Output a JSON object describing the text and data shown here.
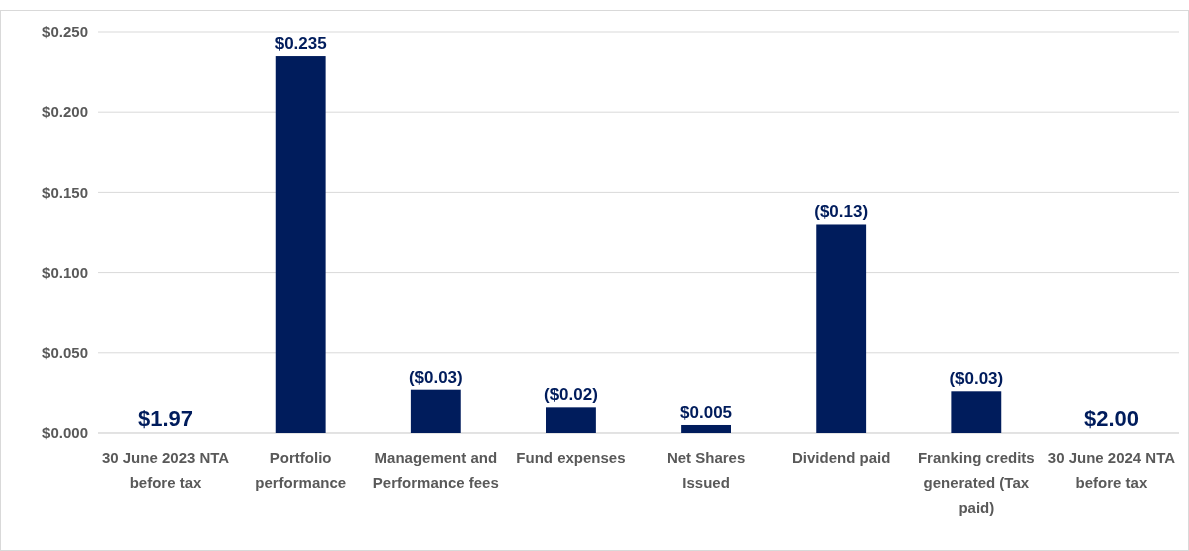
{
  "chart_data": {
    "type": "bar",
    "categories": [
      "30 June 2023 NTA before tax",
      "Portfolio performance",
      "Management and Performance fees",
      "Fund expenses",
      "Net Shares Issued",
      "Dividend paid",
      "Franking credits generated (Tax paid)",
      "30 June 2024 NTA before tax"
    ],
    "values": [
      null,
      0.235,
      0.027,
      0.016,
      0.005,
      0.13,
      0.026,
      null
    ],
    "value_labels": [
      "$1.97",
      "$0.235",
      "($0.03)",
      "($0.02)",
      "$0.005",
      "($0.13)",
      "($0.03)",
      "$2.00"
    ],
    "color": "#001c5c",
    "ylim": [
      0,
      0.25
    ],
    "yticks": [
      {
        "value": 0,
        "label": "$0.000"
      },
      {
        "value": 0.05,
        "label": "$0.050"
      },
      {
        "value": 0.1,
        "label": "$0.100"
      },
      {
        "value": 0.15,
        "label": "$0.150"
      },
      {
        "value": 0.2,
        "label": "$0.200"
      },
      {
        "value": 0.25,
        "label": "$0.250"
      }
    ],
    "grid": "y"
  }
}
